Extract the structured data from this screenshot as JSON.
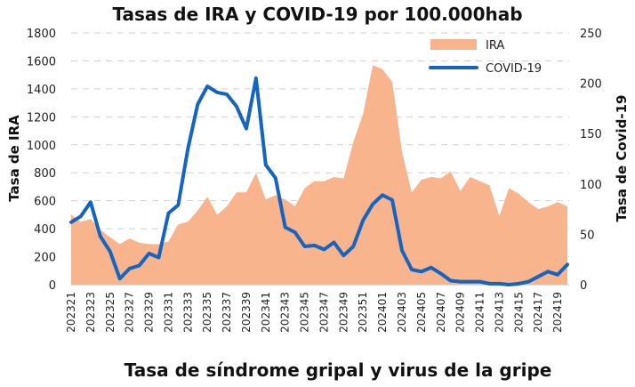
{
  "chart_data": {
    "type": "area+line",
    "title": "Tasas de IRA y COVID-19 por 100.000hab",
    "footer": "Tasa de síndrome gripal y virus de la gripe",
    "ylabel_left": "Tasa de IRA",
    "ylabel_right": "Tasa de Covid-19",
    "ylim_left": [
      0,
      1800
    ],
    "ylim_right": [
      0,
      250
    ],
    "yticks_left": [
      0,
      200,
      400,
      600,
      800,
      1000,
      1200,
      1400,
      1600,
      1800
    ],
    "yticks_right": [
      0,
      50,
      100,
      150,
      200,
      250
    ],
    "x_tick_labels": [
      "202321",
      "202323",
      "202325",
      "202327",
      "202329",
      "202331",
      "202333",
      "202335",
      "202337",
      "202339",
      "202341",
      "202343",
      "202345",
      "202347",
      "202349",
      "202351",
      "202401",
      "202403",
      "202405",
      "202407",
      "202409",
      "202411",
      "202413",
      "202415",
      "202417",
      "202419"
    ],
    "weeks": [
      "202321",
      "202322",
      "202323",
      "202324",
      "202325",
      "202326",
      "202327",
      "202328",
      "202329",
      "202330",
      "202331",
      "202332",
      "202333",
      "202334",
      "202335",
      "202336",
      "202337",
      "202338",
      "202339",
      "202340",
      "202341",
      "202342",
      "202343",
      "202344",
      "202345",
      "202346",
      "202347",
      "202348",
      "202349",
      "202350",
      "202351",
      "202352",
      "202401",
      "202402",
      "202403",
      "202404",
      "202405",
      "202406",
      "202407",
      "202408",
      "202409",
      "202410",
      "202411",
      "202412",
      "202413",
      "202414",
      "202415",
      "202416",
      "202417",
      "202418",
      "202419",
      "202420"
    ],
    "series": [
      {
        "name": "IRA",
        "axis": "left",
        "kind": "area",
        "color": "#F8B48C",
        "values": [
          500,
          450,
          470,
          390,
          340,
          290,
          330,
          300,
          290,
          290,
          310,
          430,
          450,
          530,
          630,
          500,
          560,
          660,
          660,
          800,
          610,
          640,
          610,
          560,
          690,
          740,
          740,
          770,
          760,
          1020,
          1220,
          1570,
          1540,
          1450,
          950,
          660,
          750,
          770,
          760,
          810,
          670,
          770,
          740,
          710,
          490,
          690,
          650,
          590,
          540,
          560,
          590,
          560
        ]
      },
      {
        "name": "COVID-19",
        "axis": "right",
        "kind": "line",
        "color": "#1565C0",
        "values": [
          62,
          68,
          82,
          48,
          33,
          6,
          16,
          19,
          31,
          27,
          71,
          79,
          135,
          179,
          197,
          191,
          189,
          177,
          155,
          205,
          119,
          106,
          57,
          52,
          38,
          39,
          35,
          42,
          29,
          38,
          64,
          80,
          89,
          84,
          34,
          15,
          13,
          17,
          11,
          4,
          3,
          3,
          3,
          1,
          1,
          0,
          1,
          3,
          8,
          13,
          10,
          20
        ]
      }
    ],
    "legend_position": "top-right",
    "grid": "horizontal-dashed"
  }
}
